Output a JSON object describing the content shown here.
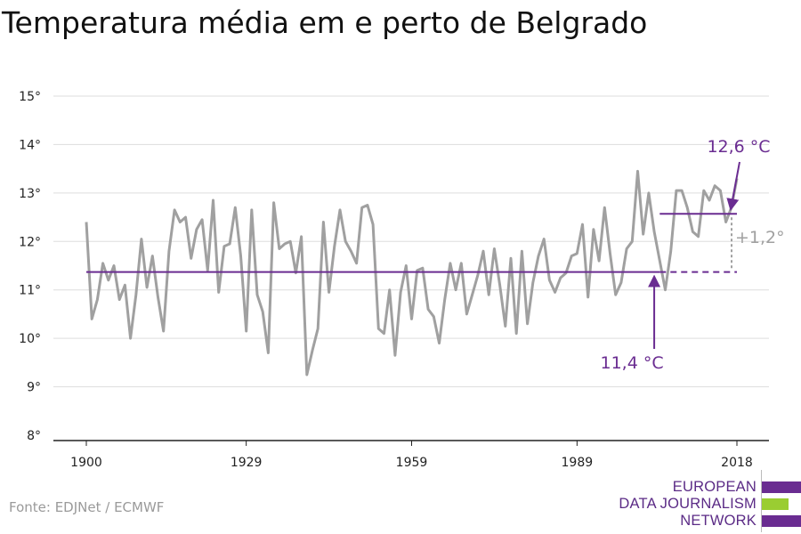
{
  "title": "Temperatura média em e perto de Belgrado",
  "source": "Fonte: EDJNet / ECMWF",
  "logo": {
    "lines": [
      "EUROPEAN",
      "DATA JOURNALISM",
      "NETWORK"
    ],
    "colors": [
      "#6a2c91",
      "#9acd32",
      "#6a2c91"
    ]
  },
  "colors": {
    "series": "#a0a0a0",
    "accent": "#6a2c91",
    "grid": "#dddddd",
    "axis": "#222222"
  },
  "chart_data": {
    "type": "line",
    "title": "Temperatura média em e perto de Belgrado",
    "ylim": [
      8,
      15
    ],
    "xlim": [
      1900,
      2018
    ],
    "yticks": [
      8,
      9,
      10,
      11,
      12,
      13,
      14,
      15
    ],
    "ytick_labels": [
      "8°",
      "9°",
      "10°",
      "11°",
      "12°",
      "13°",
      "14°",
      "15°"
    ],
    "xticks": [
      1900,
      1929,
      1959,
      1989,
      2018
    ],
    "xtick_labels": [
      "1900",
      "1929",
      "1959",
      "1989",
      "2018"
    ],
    "grid": true,
    "x": [
      1900,
      1901,
      1902,
      1903,
      1904,
      1905,
      1906,
      1907,
      1908,
      1909,
      1910,
      1911,
      1912,
      1913,
      1914,
      1915,
      1916,
      1917,
      1918,
      1919,
      1920,
      1921,
      1922,
      1923,
      1924,
      1925,
      1926,
      1927,
      1928,
      1929,
      1930,
      1931,
      1932,
      1933,
      1934,
      1935,
      1936,
      1937,
      1938,
      1939,
      1940,
      1941,
      1942,
      1943,
      1944,
      1945,
      1946,
      1947,
      1948,
      1949,
      1950,
      1951,
      1952,
      1953,
      1954,
      1955,
      1956,
      1957,
      1958,
      1959,
      1960,
      1961,
      1962,
      1963,
      1964,
      1965,
      1966,
      1967,
      1968,
      1969,
      1970,
      1971,
      1972,
      1973,
      1974,
      1975,
      1976,
      1977,
      1978,
      1979,
      1980,
      1981,
      1982,
      1983,
      1984,
      1985,
      1986,
      1987,
      1988,
      1989,
      1990,
      1991,
      1992,
      1993,
      1994,
      1995,
      1996,
      1997,
      1998,
      1999,
      2000,
      2001,
      2002,
      2003,
      2004,
      2005,
      2006,
      2007,
      2008,
      2009,
      2010,
      2011,
      2012,
      2013,
      2014,
      2015,
      2016,
      2017,
      2018
    ],
    "series": [
      {
        "values": [
          12.4,
          10.4,
          10.8,
          11.55,
          11.2,
          11.5,
          10.8,
          11.1,
          10.0,
          10.9,
          12.05,
          11.05,
          11.7,
          10.85,
          10.15,
          11.8,
          12.65,
          12.4,
          12.5,
          11.65,
          12.25,
          12.45,
          11.4,
          12.85,
          10.95,
          11.9,
          11.95,
          12.7,
          11.7,
          10.15,
          12.65,
          10.9,
          10.55,
          9.7,
          12.8,
          11.85,
          11.95,
          12.0,
          11.35,
          12.1,
          9.25,
          9.75,
          10.2,
          12.4,
          10.95,
          11.9,
          12.65,
          12.0,
          11.8,
          11.55,
          12.7,
          12.75,
          12.35,
          10.2,
          10.1,
          11.0,
          9.65,
          10.95,
          11.5,
          10.4,
          11.4,
          11.45,
          10.6,
          10.45,
          9.9,
          10.8,
          11.55,
          11.0,
          11.55,
          10.5,
          10.9,
          11.3,
          11.8,
          10.9,
          11.85,
          11.1,
          10.25,
          11.65,
          10.1,
          11.8,
          10.3,
          11.15,
          11.7,
          12.05,
          11.2,
          10.95,
          11.25,
          11.35,
          11.7,
          11.75,
          12.35,
          10.85,
          12.25,
          11.6,
          12.7,
          11.75,
          10.9,
          11.15,
          11.85,
          12.0,
          13.45,
          12.15,
          13.0,
          12.2,
          11.6,
          11.0,
          11.8,
          13.05,
          13.05,
          12.7,
          12.2,
          12.1,
          13.05,
          12.85,
          13.15,
          13.05,
          12.4,
          12.7,
          13.3
        ]
      }
    ],
    "reference_lines": [
      {
        "label": "11,4 °C",
        "value": 11.37,
        "from": 1900,
        "to": 2018,
        "dashed_from": 2004
      },
      {
        "label": "12,6 °C",
        "value": 12.57,
        "from": 2004,
        "to": 2018
      }
    ],
    "difference_label": "+1,2°"
  }
}
